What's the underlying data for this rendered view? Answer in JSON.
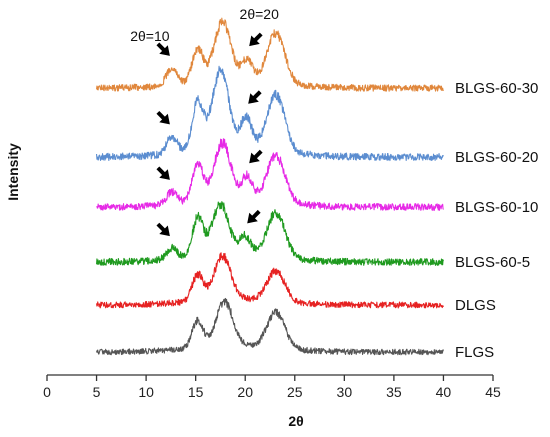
{
  "chart_data": {
    "type": "line",
    "title": "",
    "xlabel": "2θ",
    "ylabel": "Intensity",
    "xlim": [
      0,
      45
    ],
    "x_ticks": [
      0,
      5,
      10,
      15,
      20,
      25,
      30,
      35,
      40,
      45
    ],
    "x_range": [
      5,
      40
    ],
    "y_ticks": [],
    "grid": false,
    "legend": "inline-right",
    "series": [
      {
        "name": "BLGS-60-30",
        "color": "#E0873C",
        "peaks": [
          {
            "x": 12.6,
            "height": 0.28
          },
          {
            "x": 15.2,
            "height": 0.55
          },
          {
            "x": 17.7,
            "height": 0.95
          },
          {
            "x": 20.2,
            "height": 0.35
          },
          {
            "x": 23.1,
            "height": 0.8
          }
        ]
      },
      {
        "name": "BLGS-60-20",
        "color": "#5B8DD0",
        "peaks": [
          {
            "x": 12.6,
            "height": 0.22
          },
          {
            "x": 15.2,
            "height": 0.62
          },
          {
            "x": 17.5,
            "height": 1.0
          },
          {
            "x": 20.1,
            "height": 0.4
          },
          {
            "x": 23.1,
            "height": 0.72
          }
        ]
      },
      {
        "name": "BLGS-60-10",
        "color": "#E62AE6",
        "peaks": [
          {
            "x": 12.6,
            "height": 0.2
          },
          {
            "x": 15.2,
            "height": 0.62
          },
          {
            "x": 17.7,
            "height": 0.92
          },
          {
            "x": 20.2,
            "height": 0.38
          },
          {
            "x": 23.1,
            "height": 0.75
          }
        ]
      },
      {
        "name": "BLGS-60-5",
        "color": "#1F9A1F",
        "peaks": [
          {
            "x": 12.6,
            "height": 0.18
          },
          {
            "x": 15.2,
            "height": 0.62
          },
          {
            "x": 17.5,
            "height": 0.82
          },
          {
            "x": 20.0,
            "height": 0.3
          },
          {
            "x": 23.1,
            "height": 0.72
          }
        ]
      },
      {
        "name": "DLGS",
        "color": "#E62222",
        "peaks": [
          {
            "x": 15.2,
            "height": 0.55
          },
          {
            "x": 17.7,
            "height": 0.9
          },
          {
            "x": 23.1,
            "height": 0.62
          }
        ]
      },
      {
        "name": "FLGS",
        "color": "#555555",
        "peaks": [
          {
            "x": 15.2,
            "height": 0.55
          },
          {
            "x": 17.9,
            "height": 0.9
          },
          {
            "x": 23.1,
            "height": 0.72
          }
        ]
      }
    ],
    "annotations": [
      {
        "text": "2θ=10",
        "series": "BLGS-60-30",
        "x": 12.6
      },
      {
        "text": "2θ=20",
        "series": "BLGS-60-30",
        "x": 20.2
      }
    ],
    "arrow_marks": [
      {
        "series": "BLGS-60-30",
        "x": 12.6
      },
      {
        "series": "BLGS-60-30",
        "x": 20.2
      },
      {
        "series": "BLGS-60-20",
        "x": 12.6
      },
      {
        "series": "BLGS-60-20",
        "x": 20.1
      },
      {
        "series": "BLGS-60-10",
        "x": 12.6
      },
      {
        "series": "BLGS-60-10",
        "x": 20.2
      },
      {
        "series": "BLGS-60-5",
        "x": 12.6
      },
      {
        "series": "BLGS-60-5",
        "x": 20.0
      }
    ]
  }
}
